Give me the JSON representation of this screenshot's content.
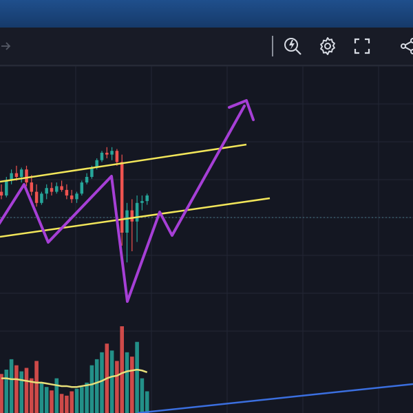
{
  "toolbar": {
    "icons": [
      {
        "name": "arrow-right-icon",
        "active": false
      },
      {
        "name": "quick-search-icon"
      },
      {
        "name": "settings-gear-icon"
      },
      {
        "name": "fullscreen-icon"
      },
      {
        "name": "share-icon"
      }
    ]
  },
  "colors": {
    "background": "#141722",
    "toolbar": "#181b26",
    "topbar": "#1f4f8c",
    "grid": "#232735",
    "up": "#26a69a",
    "down": "#ef5350",
    "channel": "#f2e65a",
    "projection": "#a63fd6",
    "volume_ma": "#e8e07a",
    "trend_line": "#3b6fe0"
  },
  "chart_data": {
    "type": "candlestick",
    "candles": [
      {
        "o": 0.62,
        "h": 0.66,
        "l": 0.58,
        "c": 0.6
      },
      {
        "o": 0.6,
        "h": 0.7,
        "l": 0.59,
        "c": 0.68
      },
      {
        "o": 0.68,
        "h": 0.74,
        "l": 0.66,
        "c": 0.72
      },
      {
        "o": 0.72,
        "h": 0.76,
        "l": 0.68,
        "c": 0.7
      },
      {
        "o": 0.7,
        "h": 0.75,
        "l": 0.67,
        "c": 0.74
      },
      {
        "o": 0.74,
        "h": 0.76,
        "l": 0.65,
        "c": 0.67
      },
      {
        "o": 0.67,
        "h": 0.71,
        "l": 0.6,
        "c": 0.62
      },
      {
        "o": 0.62,
        "h": 0.66,
        "l": 0.54,
        "c": 0.56
      },
      {
        "o": 0.56,
        "h": 0.62,
        "l": 0.55,
        "c": 0.61
      },
      {
        "o": 0.61,
        "h": 0.66,
        "l": 0.58,
        "c": 0.64
      },
      {
        "o": 0.64,
        "h": 0.67,
        "l": 0.6,
        "c": 0.62
      },
      {
        "o": 0.62,
        "h": 0.67,
        "l": 0.61,
        "c": 0.65
      },
      {
        "o": 0.65,
        "h": 0.68,
        "l": 0.62,
        "c": 0.63
      },
      {
        "o": 0.63,
        "h": 0.66,
        "l": 0.58,
        "c": 0.6
      },
      {
        "o": 0.6,
        "h": 0.63,
        "l": 0.56,
        "c": 0.58
      },
      {
        "o": 0.58,
        "h": 0.62,
        "l": 0.56,
        "c": 0.61
      },
      {
        "o": 0.61,
        "h": 0.68,
        "l": 0.6,
        "c": 0.67
      },
      {
        "o": 0.67,
        "h": 0.72,
        "l": 0.66,
        "c": 0.7
      },
      {
        "o": 0.7,
        "h": 0.76,
        "l": 0.69,
        "c": 0.75
      },
      {
        "o": 0.75,
        "h": 0.8,
        "l": 0.74,
        "c": 0.79
      },
      {
        "o": 0.79,
        "h": 0.84,
        "l": 0.78,
        "c": 0.83
      },
      {
        "o": 0.83,
        "h": 0.86,
        "l": 0.8,
        "c": 0.82
      },
      {
        "o": 0.82,
        "h": 0.86,
        "l": 0.79,
        "c": 0.84
      },
      {
        "o": 0.84,
        "h": 0.85,
        "l": 0.76,
        "c": 0.78
      },
      {
        "o": 0.78,
        "h": 0.82,
        "l": 0.33,
        "c": 0.4
      },
      {
        "o": 0.4,
        "h": 0.56,
        "l": 0.24,
        "c": 0.52
      },
      {
        "o": 0.52,
        "h": 0.58,
        "l": 0.3,
        "c": 0.46
      },
      {
        "o": 0.46,
        "h": 0.6,
        "l": 0.35,
        "c": 0.56
      },
      {
        "o": 0.56,
        "h": 0.6,
        "l": 0.52,
        "c": 0.57
      },
      {
        "o": 0.57,
        "h": 0.61,
        "l": 0.55,
        "c": 0.6
      }
    ],
    "volume": [
      0.45,
      0.5,
      0.62,
      0.55,
      0.48,
      0.52,
      0.4,
      0.6,
      0.35,
      0.3,
      0.26,
      0.4,
      0.22,
      0.2,
      0.25,
      0.28,
      0.3,
      0.35,
      0.55,
      0.62,
      0.7,
      0.8,
      0.72,
      0.6,
      1.0,
      0.7,
      0.65,
      0.82,
      0.4,
      0.25
    ],
    "volume_ma": [
      0.4,
      0.4,
      0.39,
      0.39,
      0.38,
      0.37,
      0.36,
      0.35,
      0.35,
      0.34,
      0.33,
      0.32,
      0.31,
      0.31,
      0.3,
      0.3,
      0.31,
      0.32,
      0.33,
      0.35,
      0.37,
      0.4,
      0.42,
      0.43,
      0.46,
      0.48,
      0.49,
      0.5,
      0.49,
      0.47
    ],
    "grid": true
  }
}
